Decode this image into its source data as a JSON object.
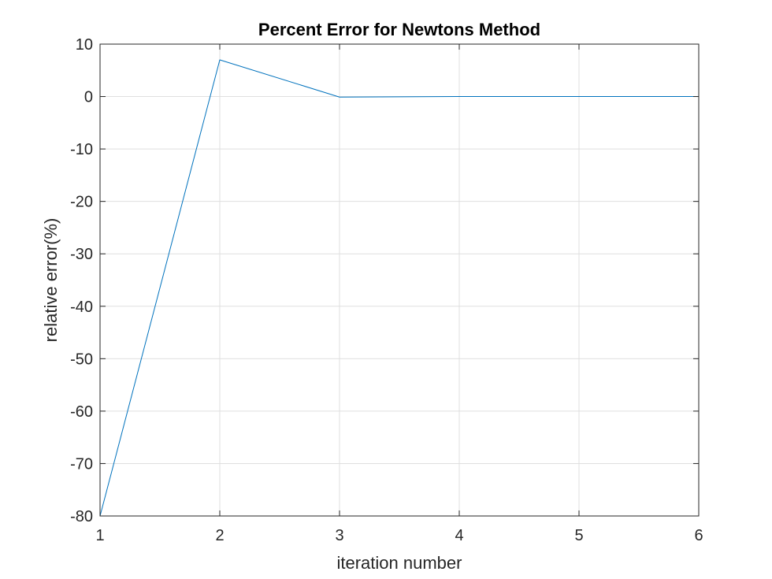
{
  "chart_data": {
    "type": "line",
    "title": "Percent Error for Newtons Method",
    "xlabel": "iteration number",
    "ylabel": "relative error(%)",
    "x": [
      1,
      2,
      3,
      4,
      5,
      6
    ],
    "series": [
      {
        "values": [
          -80,
          7,
          -0.1,
          0,
          0,
          0
        ],
        "color": "#0072BD"
      }
    ],
    "xlim": [
      1,
      6
    ],
    "ylim": [
      -80,
      10
    ],
    "xticks": [
      1,
      2,
      3,
      4,
      5,
      6
    ],
    "xtick_labels": [
      "1",
      "2",
      "3",
      "4",
      "5",
      "6"
    ],
    "yticks": [
      10,
      0,
      -10,
      -20,
      -30,
      -40,
      -50,
      -60,
      -70,
      -80
    ],
    "ytick_labels": [
      "10",
      "0",
      "-10",
      "-20",
      "-30",
      "-40",
      "-50",
      "-60",
      "-70",
      "-80"
    ],
    "grid": true,
    "box": true,
    "legend": false
  }
}
